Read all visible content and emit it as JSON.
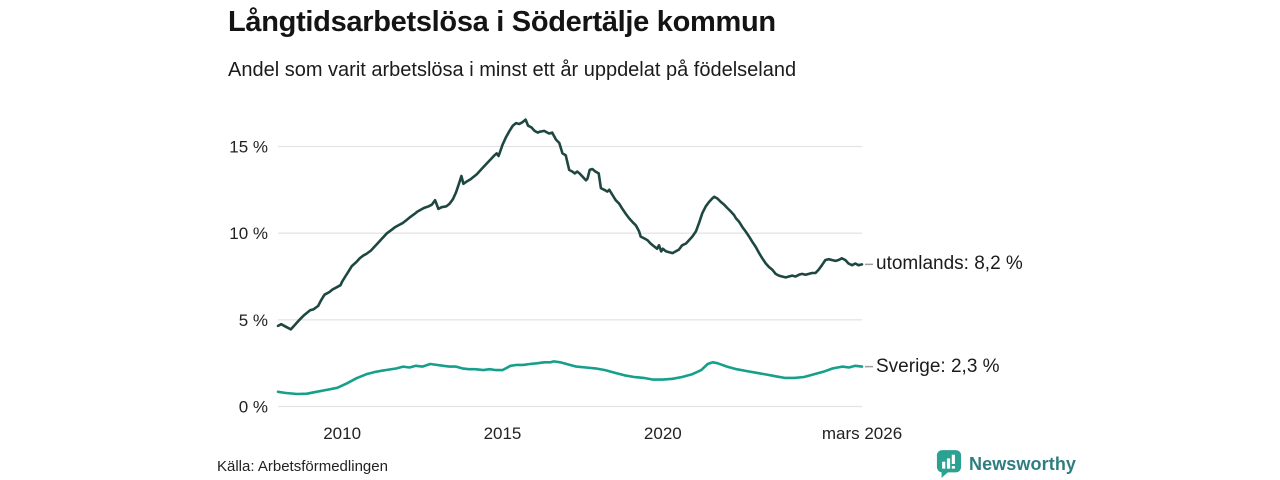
{
  "header": {
    "title": "Långtidsarbetslösa i Södertälje kommun",
    "subtitle": "Andel som varit arbetslösa i minst ett år uppdelat på födelseland"
  },
  "footer": {
    "source": "Källa: Arbetsförmedlingen",
    "brand": "Newsworthy"
  },
  "colors": {
    "utomlands_line": "#1e4741",
    "sverige_line": "#16a08c",
    "grid": "#e4e4e7",
    "axis_text": "#222222",
    "connector": "#9aa0a3",
    "brand_icon": "#2ba192",
    "brand_text": "#2f7d7f"
  },
  "chart_data": {
    "type": "line",
    "title": "Långtidsarbetslösa i Södertälje kommun",
    "subtitle": "Andel som varit arbetslösa i minst ett år uppdelat på födelseland",
    "unit": "%",
    "grid": true,
    "x_axis": {
      "range": [
        2008,
        2026.21
      ],
      "ticks": [
        {
          "year": 2010,
          "label": "2010"
        },
        {
          "year": 2015,
          "label": "2015"
        },
        {
          "year": 2020,
          "label": "2020"
        },
        {
          "year": 2026.21,
          "label": "mars 2026"
        }
      ]
    },
    "y_axis": {
      "range": [
        0,
        17
      ],
      "ticks": [
        {
          "value": 0,
          "label": "0 %"
        },
        {
          "value": 5,
          "label": "5 %"
        },
        {
          "value": 10,
          "label": "10 %"
        },
        {
          "value": 15,
          "label": "15 %"
        }
      ]
    },
    "series": [
      {
        "name": "utomlands",
        "end_label": "utomlands: 8,2 %",
        "end_value": "8,2 %",
        "color": "#1e4741",
        "points": [
          [
            2008.0,
            4.65
          ],
          [
            2008.1,
            4.75
          ],
          [
            2008.25,
            4.6
          ],
          [
            2008.4,
            4.45
          ],
          [
            2008.5,
            4.65
          ],
          [
            2008.67,
            5.0
          ],
          [
            2008.8,
            5.25
          ],
          [
            2008.9,
            5.4
          ],
          [
            2009.0,
            5.55
          ],
          [
            2009.1,
            5.6
          ],
          [
            2009.25,
            5.8
          ],
          [
            2009.35,
            6.15
          ],
          [
            2009.45,
            6.45
          ],
          [
            2009.6,
            6.6
          ],
          [
            2009.7,
            6.75
          ],
          [
            2009.8,
            6.85
          ],
          [
            2009.95,
            7.0
          ],
          [
            2010.0,
            7.2
          ],
          [
            2010.1,
            7.5
          ],
          [
            2010.2,
            7.8
          ],
          [
            2010.3,
            8.1
          ],
          [
            2010.45,
            8.35
          ],
          [
            2010.55,
            8.55
          ],
          [
            2010.65,
            8.7
          ],
          [
            2010.75,
            8.8
          ],
          [
            2010.9,
            9.0
          ],
          [
            2011.0,
            9.2
          ],
          [
            2011.1,
            9.4
          ],
          [
            2011.2,
            9.6
          ],
          [
            2011.3,
            9.8
          ],
          [
            2011.4,
            10.0
          ],
          [
            2011.55,
            10.2
          ],
          [
            2011.65,
            10.35
          ],
          [
            2011.75,
            10.45
          ],
          [
            2011.9,
            10.6
          ],
          [
            2012.0,
            10.75
          ],
          [
            2012.1,
            10.9
          ],
          [
            2012.25,
            11.1
          ],
          [
            2012.35,
            11.25
          ],
          [
            2012.45,
            11.35
          ],
          [
            2012.55,
            11.45
          ],
          [
            2012.7,
            11.55
          ],
          [
            2012.8,
            11.65
          ],
          [
            2012.9,
            11.9
          ],
          [
            2013.0,
            11.4
          ],
          [
            2013.1,
            11.5
          ],
          [
            2013.25,
            11.55
          ],
          [
            2013.35,
            11.7
          ],
          [
            2013.45,
            11.95
          ],
          [
            2013.55,
            12.35
          ],
          [
            2013.65,
            12.9
          ],
          [
            2013.72,
            13.3
          ],
          [
            2013.78,
            12.85
          ],
          [
            2013.9,
            13.0
          ],
          [
            2014.0,
            13.1
          ],
          [
            2014.2,
            13.4
          ],
          [
            2014.4,
            13.8
          ],
          [
            2014.6,
            14.2
          ],
          [
            2014.75,
            14.5
          ],
          [
            2014.82,
            14.6
          ],
          [
            2014.88,
            14.45
          ],
          [
            2015.0,
            15.1
          ],
          [
            2015.1,
            15.5
          ],
          [
            2015.22,
            15.9
          ],
          [
            2015.32,
            16.2
          ],
          [
            2015.42,
            16.35
          ],
          [
            2015.52,
            16.3
          ],
          [
            2015.62,
            16.4
          ],
          [
            2015.72,
            16.55
          ],
          [
            2015.8,
            16.2
          ],
          [
            2015.9,
            16.1
          ],
          [
            2016.0,
            15.9
          ],
          [
            2016.1,
            15.8
          ],
          [
            2016.15,
            15.85
          ],
          [
            2016.3,
            15.9
          ],
          [
            2016.45,
            15.75
          ],
          [
            2016.55,
            15.8
          ],
          [
            2016.67,
            15.4
          ],
          [
            2016.77,
            15.2
          ],
          [
            2016.87,
            14.6
          ],
          [
            2016.97,
            14.5
          ],
          [
            2017.08,
            13.65
          ],
          [
            2017.18,
            13.55
          ],
          [
            2017.25,
            13.45
          ],
          [
            2017.33,
            13.55
          ],
          [
            2017.4,
            13.45
          ],
          [
            2017.5,
            13.25
          ],
          [
            2017.6,
            13.05
          ],
          [
            2017.65,
            13.15
          ],
          [
            2017.72,
            13.65
          ],
          [
            2017.8,
            13.7
          ],
          [
            2017.9,
            13.55
          ],
          [
            2018.0,
            13.45
          ],
          [
            2018.07,
            12.6
          ],
          [
            2018.17,
            12.5
          ],
          [
            2018.27,
            12.4
          ],
          [
            2018.33,
            12.5
          ],
          [
            2018.43,
            12.2
          ],
          [
            2018.53,
            11.9
          ],
          [
            2018.64,
            11.7
          ],
          [
            2018.74,
            11.4
          ],
          [
            2018.85,
            11.1
          ],
          [
            2018.95,
            10.85
          ],
          [
            2019.05,
            10.65
          ],
          [
            2019.16,
            10.45
          ],
          [
            2019.26,
            10.1
          ],
          [
            2019.31,
            9.8
          ],
          [
            2019.42,
            9.7
          ],
          [
            2019.52,
            9.6
          ],
          [
            2019.62,
            9.4
          ],
          [
            2019.72,
            9.25
          ],
          [
            2019.82,
            9.1
          ],
          [
            2019.88,
            9.3
          ],
          [
            2019.95,
            8.95
          ],
          [
            2020.0,
            9.1
          ],
          [
            2020.1,
            8.95
          ],
          [
            2020.2,
            8.9
          ],
          [
            2020.3,
            8.85
          ],
          [
            2020.4,
            8.95
          ],
          [
            2020.5,
            9.05
          ],
          [
            2020.6,
            9.3
          ],
          [
            2020.72,
            9.4
          ],
          [
            2020.82,
            9.6
          ],
          [
            2020.92,
            9.8
          ],
          [
            2021.03,
            10.1
          ],
          [
            2021.13,
            10.6
          ],
          [
            2021.23,
            11.15
          ],
          [
            2021.34,
            11.55
          ],
          [
            2021.44,
            11.8
          ],
          [
            2021.54,
            12.0
          ],
          [
            2021.6,
            12.1
          ],
          [
            2021.7,
            12.0
          ],
          [
            2021.81,
            11.8
          ],
          [
            2021.91,
            11.65
          ],
          [
            2022.01,
            11.45
          ],
          [
            2022.12,
            11.25
          ],
          [
            2022.22,
            11.05
          ],
          [
            2022.28,
            10.85
          ],
          [
            2022.38,
            10.65
          ],
          [
            2022.48,
            10.35
          ],
          [
            2022.58,
            10.1
          ],
          [
            2022.69,
            9.8
          ],
          [
            2022.79,
            9.5
          ],
          [
            2022.9,
            9.2
          ],
          [
            2023.0,
            8.85
          ],
          [
            2023.1,
            8.55
          ],
          [
            2023.21,
            8.25
          ],
          [
            2023.31,
            8.05
          ],
          [
            2023.41,
            7.9
          ],
          [
            2023.52,
            7.65
          ],
          [
            2023.62,
            7.55
          ],
          [
            2023.72,
            7.5
          ],
          [
            2023.83,
            7.45
          ],
          [
            2023.93,
            7.5
          ],
          [
            2024.03,
            7.55
          ],
          [
            2024.14,
            7.5
          ],
          [
            2024.24,
            7.6
          ],
          [
            2024.34,
            7.65
          ],
          [
            2024.45,
            7.6
          ],
          [
            2024.55,
            7.65
          ],
          [
            2024.65,
            7.7
          ],
          [
            2024.76,
            7.7
          ],
          [
            2024.86,
            7.9
          ],
          [
            2024.96,
            8.15
          ],
          [
            2025.07,
            8.45
          ],
          [
            2025.17,
            8.5
          ],
          [
            2025.27,
            8.45
          ],
          [
            2025.38,
            8.4
          ],
          [
            2025.48,
            8.45
          ],
          [
            2025.58,
            8.55
          ],
          [
            2025.69,
            8.45
          ],
          [
            2025.79,
            8.25
          ],
          [
            2025.9,
            8.15
          ],
          [
            2026.0,
            8.25
          ],
          [
            2026.1,
            8.15
          ],
          [
            2026.21,
            8.2
          ]
        ]
      },
      {
        "name": "Sverige",
        "end_label": "Sverige: 2,3 %",
        "end_value": "2,3 %",
        "color": "#16a08c",
        "points": [
          [
            2008.0,
            0.85
          ],
          [
            2008.25,
            0.78
          ],
          [
            2008.6,
            0.72
          ],
          [
            2008.9,
            0.74
          ],
          [
            2009.2,
            0.85
          ],
          [
            2009.5,
            0.95
          ],
          [
            2009.85,
            1.08
          ],
          [
            2010.15,
            1.34
          ],
          [
            2010.45,
            1.63
          ],
          [
            2010.75,
            1.86
          ],
          [
            2011.05,
            2.0
          ],
          [
            2011.35,
            2.1
          ],
          [
            2011.7,
            2.2
          ],
          [
            2011.9,
            2.3
          ],
          [
            2012.1,
            2.25
          ],
          [
            2012.3,
            2.35
          ],
          [
            2012.5,
            2.3
          ],
          [
            2012.75,
            2.45
          ],
          [
            2012.95,
            2.4
          ],
          [
            2013.15,
            2.35
          ],
          [
            2013.35,
            2.3
          ],
          [
            2013.55,
            2.3
          ],
          [
            2013.75,
            2.2
          ],
          [
            2013.95,
            2.15
          ],
          [
            2014.15,
            2.15
          ],
          [
            2014.4,
            2.1
          ],
          [
            2014.6,
            2.15
          ],
          [
            2014.8,
            2.1
          ],
          [
            2015.0,
            2.1
          ],
          [
            2015.25,
            2.35
          ],
          [
            2015.45,
            2.4
          ],
          [
            2015.65,
            2.4
          ],
          [
            2015.85,
            2.45
          ],
          [
            2016.1,
            2.5
          ],
          [
            2016.3,
            2.55
          ],
          [
            2016.5,
            2.55
          ],
          [
            2016.6,
            2.6
          ],
          [
            2016.8,
            2.55
          ],
          [
            2017.0,
            2.45
          ],
          [
            2017.3,
            2.3
          ],
          [
            2017.6,
            2.25
          ],
          [
            2017.9,
            2.2
          ],
          [
            2018.2,
            2.1
          ],
          [
            2018.5,
            1.95
          ],
          [
            2018.8,
            1.8
          ],
          [
            2019.1,
            1.7
          ],
          [
            2019.4,
            1.65
          ],
          [
            2019.7,
            1.55
          ],
          [
            2020.0,
            1.55
          ],
          [
            2020.3,
            1.6
          ],
          [
            2020.6,
            1.7
          ],
          [
            2020.9,
            1.85
          ],
          [
            2021.2,
            2.1
          ],
          [
            2021.4,
            2.45
          ],
          [
            2021.55,
            2.55
          ],
          [
            2021.7,
            2.5
          ],
          [
            2022.0,
            2.3
          ],
          [
            2022.3,
            2.15
          ],
          [
            2022.6,
            2.05
          ],
          [
            2022.9,
            1.95
          ],
          [
            2023.2,
            1.85
          ],
          [
            2023.5,
            1.75
          ],
          [
            2023.8,
            1.65
          ],
          [
            2024.1,
            1.65
          ],
          [
            2024.4,
            1.7
          ],
          [
            2024.7,
            1.85
          ],
          [
            2025.0,
            2.0
          ],
          [
            2025.3,
            2.2
          ],
          [
            2025.6,
            2.3
          ],
          [
            2025.8,
            2.25
          ],
          [
            2026.0,
            2.35
          ],
          [
            2026.21,
            2.3
          ]
        ]
      }
    ]
  }
}
